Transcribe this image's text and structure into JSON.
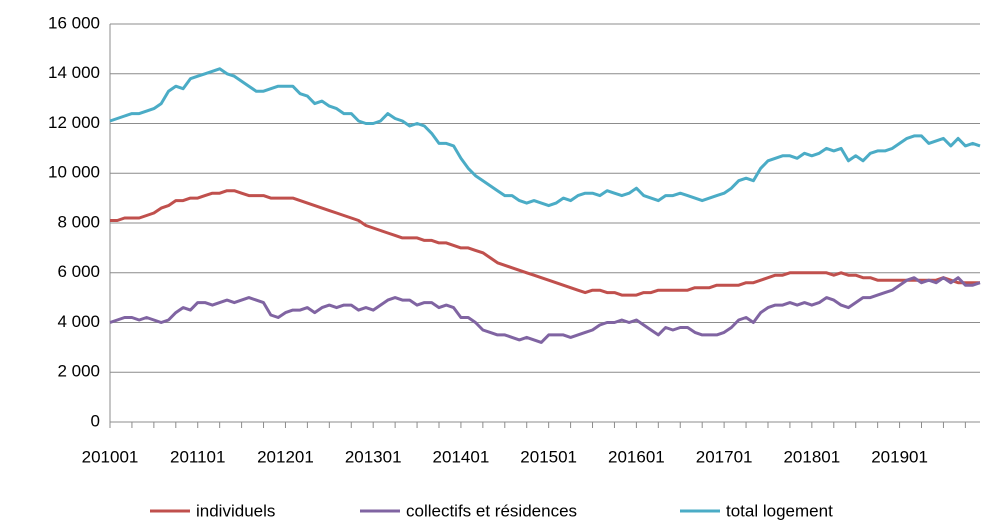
{
  "chart_data": {
    "type": "line",
    "categories": [
      "201001",
      null,
      null,
      null,
      null,
      null,
      null,
      null,
      null,
      null,
      null,
      null,
      "201101",
      null,
      null,
      null,
      null,
      null,
      null,
      null,
      null,
      null,
      null,
      null,
      "201201",
      null,
      null,
      null,
      null,
      null,
      null,
      null,
      null,
      null,
      null,
      null,
      "201301",
      null,
      null,
      null,
      null,
      null,
      null,
      null,
      null,
      null,
      null,
      null,
      "201401",
      null,
      null,
      null,
      null,
      null,
      null,
      null,
      null,
      null,
      null,
      null,
      "201501",
      null,
      null,
      null,
      null,
      null,
      null,
      null,
      null,
      null,
      null,
      null,
      "201601",
      null,
      null,
      null,
      null,
      null,
      null,
      null,
      null,
      null,
      null,
      null,
      "201701",
      null,
      null,
      null,
      null,
      null,
      null,
      null,
      null,
      null,
      null,
      null,
      "201801",
      null,
      null,
      null,
      null,
      null,
      null,
      null,
      null,
      null,
      null,
      null,
      "201901",
      null,
      null,
      null,
      null,
      null,
      null,
      null,
      null,
      null,
      null,
      null
    ],
    "series": [
      {
        "name": "individuels",
        "color": "#c0504d",
        "values": [
          8100,
          8100,
          8200,
          8200,
          8200,
          8300,
          8400,
          8600,
          8700,
          8900,
          8900,
          9000,
          9000,
          9100,
          9200,
          9200,
          9300,
          9300,
          9200,
          9100,
          9100,
          9100,
          9000,
          9000,
          9000,
          9000,
          8900,
          8800,
          8700,
          8600,
          8500,
          8400,
          8300,
          8200,
          8100,
          7900,
          7800,
          7700,
          7600,
          7500,
          7400,
          7400,
          7400,
          7300,
          7300,
          7200,
          7200,
          7100,
          7000,
          7000,
          6900,
          6800,
          6600,
          6400,
          6300,
          6200,
          6100,
          6000,
          5900,
          5800,
          5700,
          5600,
          5500,
          5400,
          5300,
          5200,
          5300,
          5300,
          5200,
          5200,
          5100,
          5100,
          5100,
          5200,
          5200,
          5300,
          5300,
          5300,
          5300,
          5300,
          5400,
          5400,
          5400,
          5500,
          5500,
          5500,
          5500,
          5600,
          5600,
          5700,
          5800,
          5900,
          5900,
          6000,
          6000,
          6000,
          6000,
          6000,
          6000,
          5900,
          6000,
          5900,
          5900,
          5800,
          5800,
          5700,
          5700,
          5700,
          5700,
          5700,
          5700,
          5700,
          5700,
          5700,
          5800,
          5700,
          5600,
          5600,
          5600,
          5600
        ]
      },
      {
        "name": "collectifs et résidences",
        "color": "#8064a2",
        "values": [
          4000,
          4100,
          4200,
          4200,
          4100,
          4200,
          4100,
          4000,
          4100,
          4400,
          4600,
          4500,
          4800,
          4800,
          4700,
          4800,
          4900,
          4800,
          4900,
          5000,
          4900,
          4800,
          4300,
          4200,
          4400,
          4500,
          4500,
          4600,
          4400,
          4600,
          4700,
          4600,
          4700,
          4700,
          4500,
          4600,
          4500,
          4700,
          4900,
          5000,
          4900,
          4900,
          4700,
          4800,
          4800,
          4600,
          4700,
          4600,
          4200,
          4200,
          4000,
          3700,
          3600,
          3500,
          3500,
          3400,
          3300,
          3400,
          3300,
          3200,
          3500,
          3500,
          3500,
          3400,
          3500,
          3600,
          3700,
          3900,
          4000,
          4000,
          4100,
          4000,
          4100,
          3900,
          3700,
          3500,
          3800,
          3700,
          3800,
          3800,
          3600,
          3500,
          3500,
          3500,
          3600,
          3800,
          4100,
          4200,
          4000,
          4400,
          4600,
          4700,
          4700,
          4800,
          4700,
          4800,
          4700,
          4800,
          5000,
          4900,
          4700,
          4600,
          4800,
          5000,
          5000,
          5100,
          5200,
          5300,
          5500,
          5700,
          5800,
          5600,
          5700,
          5600,
          5800,
          5600,
          5800,
          5500,
          5500,
          5600
        ]
      },
      {
        "name": "total logement",
        "color": "#4bacc6",
        "values": [
          12100,
          12200,
          12300,
          12400,
          12400,
          12500,
          12600,
          12800,
          13300,
          13500,
          13400,
          13800,
          13900,
          14000,
          14100,
          14200,
          14000,
          13900,
          13700,
          13500,
          13300,
          13300,
          13400,
          13500,
          13500,
          13500,
          13200,
          13100,
          12800,
          12900,
          12700,
          12600,
          12400,
          12400,
          12100,
          12000,
          12000,
          12100,
          12400,
          12200,
          12100,
          11900,
          12000,
          11900,
          11600,
          11200,
          11200,
          11100,
          10600,
          10200,
          9900,
          9700,
          9500,
          9300,
          9100,
          9100,
          8900,
          8800,
          8900,
          8800,
          8700,
          8800,
          9000,
          8900,
          9100,
          9200,
          9200,
          9100,
          9300,
          9200,
          9100,
          9200,
          9400,
          9100,
          9000,
          8900,
          9100,
          9100,
          9200,
          9100,
          9000,
          8900,
          9000,
          9100,
          9200,
          9400,
          9700,
          9800,
          9700,
          10200,
          10500,
          10600,
          10700,
          10700,
          10600,
          10800,
          10700,
          10800,
          11000,
          10900,
          11000,
          10500,
          10700,
          10500,
          10800,
          10900,
          10900,
          11000,
          11200,
          11400,
          11500,
          11500,
          11200,
          11300,
          11400,
          11100,
          11400,
          11100,
          11200,
          11100
        ]
      }
    ],
    "ylim": [
      0,
      16000
    ],
    "yticks": [
      0,
      {
        "value": 2000,
        "label": "2 000"
      },
      {
        "value": 4000,
        "label": "4 000"
      },
      {
        "value": 6000,
        "label": "6 000"
      },
      {
        "value": 8000,
        "label": "8 000"
      },
      {
        "value": 10000,
        "label": "10 000"
      },
      {
        "value": 12000,
        "label": "12 000"
      },
      {
        "value": 14000,
        "label": "14 000"
      },
      {
        "value": 16000,
        "label": "16 000"
      }
    ],
    "grid": true
  }
}
